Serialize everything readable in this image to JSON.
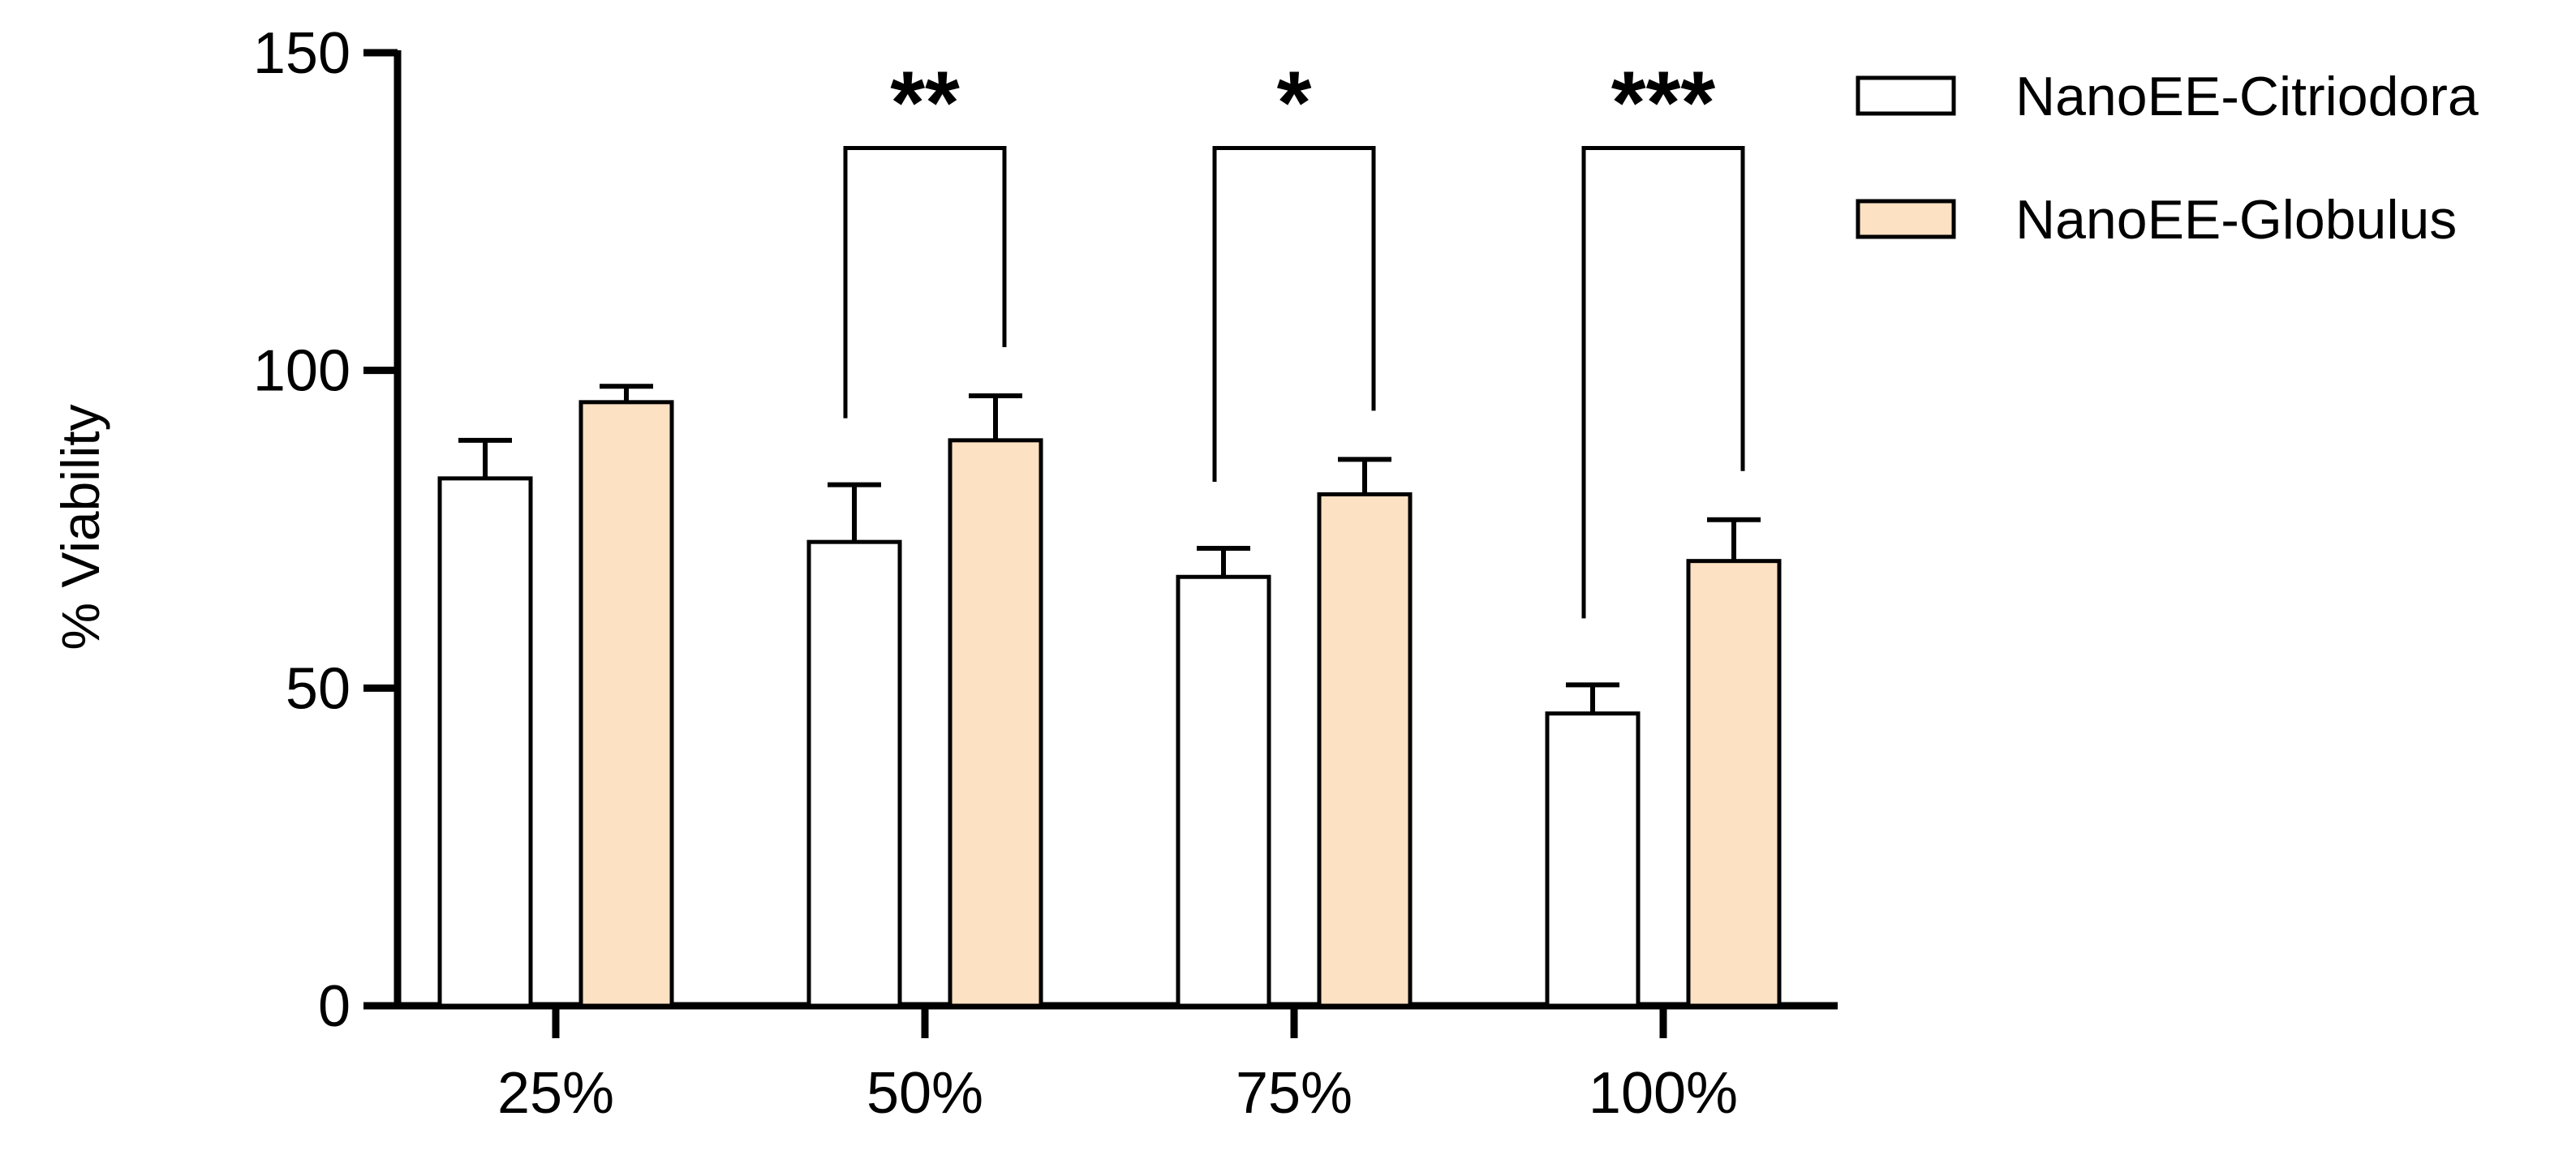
{
  "chart_data": {
    "type": "bar",
    "title": "",
    "xlabel": "",
    "ylabel": "% Viability",
    "ylim": [
      0,
      150
    ],
    "yticks": [
      0,
      50,
      100,
      150
    ],
    "categories": [
      "25%",
      "50%",
      "75%",
      "100%"
    ],
    "series": [
      {
        "name": "NanoEE-Citriodora",
        "fill": "#ffffff",
        "values": [
          83,
          73,
          67.5,
          46
        ],
        "errors": [
          6,
          9,
          4.5,
          4.5
        ]
      },
      {
        "name": "NanoEE-Globulus",
        "fill": "#fde1c3",
        "values": [
          95,
          89,
          80.5,
          70
        ],
        "errors": [
          2.5,
          7,
          5.5,
          6.5
        ]
      }
    ],
    "significance": [
      {
        "category": "50%",
        "label": "**",
        "bracket_y": 135
      },
      {
        "category": "75%",
        "label": "*",
        "bracket_y": 135
      },
      {
        "category": "100%",
        "label": "***",
        "bracket_y": 135
      }
    ],
    "legend_position": "top-right",
    "grid": false
  }
}
